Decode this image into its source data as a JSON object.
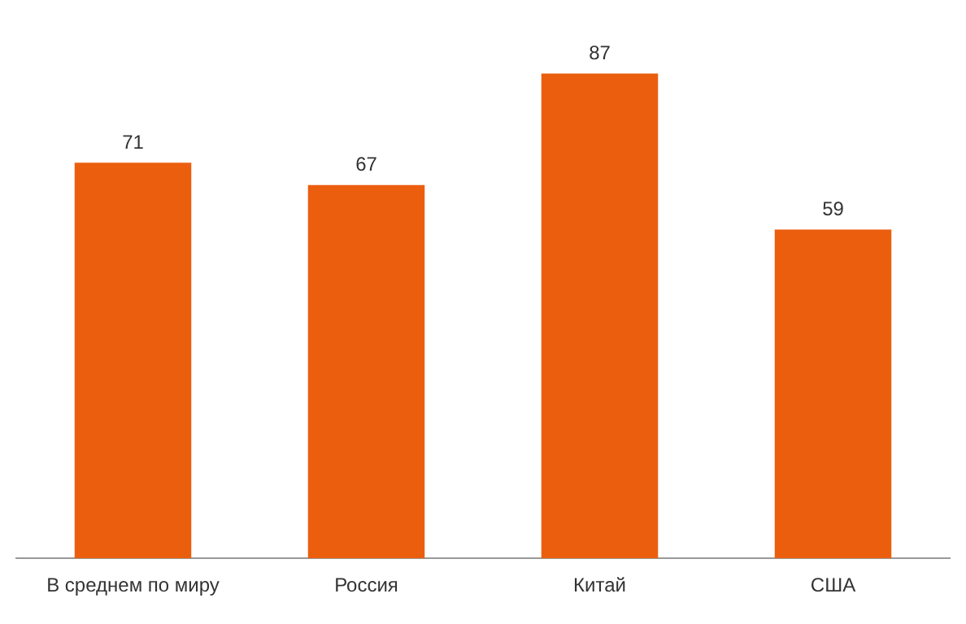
{
  "chart_data": {
    "type": "bar",
    "categories": [
      "В среднем по миру",
      "Россия",
      "Китай",
      "США"
    ],
    "values": [
      71,
      67,
      87,
      59
    ],
    "color": "#eb5e0e",
    "tick_labels": "x",
    "data_labels": true,
    "grid": false,
    "legend": false
  }
}
